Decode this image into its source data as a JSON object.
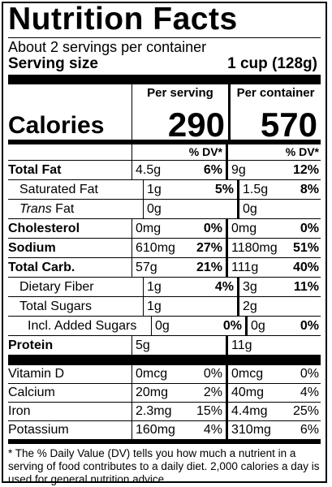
{
  "title": "Nutrition Facts",
  "servings_per_container": "About 2 servings per container",
  "serving_size_label": "Serving size",
  "serving_size_value": "1 cup (128g)",
  "per_serving_header": "Per serving",
  "per_container_header": "Per container",
  "calories_label": "Calories",
  "calories_per_serving": "290",
  "calories_per_container": "570",
  "dv_header": "% DV*",
  "nutrients": [
    {
      "name": "Total Fat",
      "serving_amount": "4.5g",
      "serving_dv": "6%",
      "container_amount": "9g",
      "container_dv": "12%"
    },
    {
      "name": "Saturated Fat",
      "serving_amount": "1g",
      "serving_dv": "5%",
      "container_amount": "1.5g",
      "container_dv": "8%"
    },
    {
      "name": "Trans",
      "name_suffix": " Fat",
      "serving_amount": "0g",
      "serving_dv": "",
      "container_amount": "0g",
      "container_dv": ""
    },
    {
      "name": "Cholesterol",
      "serving_amount": "0mg",
      "serving_dv": "0%",
      "container_amount": "0mg",
      "container_dv": "0%"
    },
    {
      "name": "Sodium",
      "serving_amount": "610mg",
      "serving_dv": "27%",
      "container_amount": "1180mg",
      "container_dv": "51%"
    },
    {
      "name": "Total Carb.",
      "serving_amount": "57g",
      "serving_dv": "21%",
      "container_amount": "111g",
      "container_dv": "40%"
    },
    {
      "name": "Dietary Fiber",
      "serving_amount": "1g",
      "serving_dv": "4%",
      "container_amount": "3g",
      "container_dv": "11%"
    },
    {
      "name": "Total Sugars",
      "serving_amount": "1g",
      "serving_dv": "",
      "container_amount": "2g",
      "container_dv": ""
    },
    {
      "name": "Incl. Added Sugars",
      "serving_amount": "0g",
      "serving_dv": "0%",
      "container_amount": "0g",
      "container_dv": "0%"
    },
    {
      "name": "Protein",
      "serving_amount": "5g",
      "serving_dv": "",
      "container_amount": "11g",
      "container_dv": ""
    }
  ],
  "vitamins": [
    {
      "name": "Vitamin D",
      "serving_amount": "0mcg",
      "serving_dv": "0%",
      "container_amount": "0mcg",
      "container_dv": "0%"
    },
    {
      "name": "Calcium",
      "serving_amount": "20mg",
      "serving_dv": "2%",
      "container_amount": "40mg",
      "container_dv": "4%"
    },
    {
      "name": "Iron",
      "serving_amount": "2.3mg",
      "serving_dv": "15%",
      "container_amount": "4.4mg",
      "container_dv": "25%"
    },
    {
      "name": "Potassium",
      "serving_amount": "160mg",
      "serving_dv": "4%",
      "container_amount": "310mg",
      "container_dv": "6%"
    }
  ],
  "footnote": "* The % Daily Value (DV) tells you how much a nutrient in a serving of food contributes to a daily diet. 2,000 calories a day is used for general nutrition advice."
}
